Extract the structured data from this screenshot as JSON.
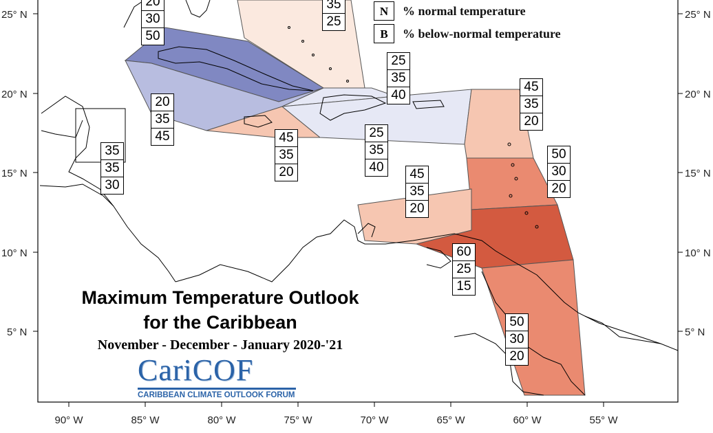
{
  "title_line1": "Maximum Temperature Outlook",
  "title_line2": "for the Caribbean",
  "subtitle": "November - December - January 2020-'21",
  "logo": {
    "main": "CariCOF",
    "sub": "CARIBBEAN CLIMATE OUTLOOK FORUM"
  },
  "legend": [
    {
      "key": "N",
      "text": "% normal temperature"
    },
    {
      "key": "B",
      "text": "% below-normal temperature"
    }
  ],
  "axes": {
    "lat_labels": [
      "25° N",
      "20° N",
      "15° N",
      "10° N",
      "5° N"
    ],
    "lon_labels": [
      "90° W",
      "85° W",
      "80° W",
      "75° W",
      "70° W",
      "65° W",
      "60° W",
      "55° W"
    ]
  },
  "colors": {
    "below_strong": "#8088c2",
    "below_medium": "#b8bde0",
    "below_light": "#e6e8f5",
    "above_faint": "#fbe9df",
    "above_light": "#f6c6b1",
    "above_medium": "#ea8a70",
    "above_strong": "#d35a40"
  },
  "zones": [
    {
      "name": "florida-bahamas",
      "probs": [
        "35",
        "25"
      ]
    },
    {
      "name": "cuba",
      "probs": [
        "20",
        "30",
        "50"
      ]
    },
    {
      "name": "cayman-western-cuba",
      "probs": [
        "20",
        "35",
        "45"
      ]
    },
    {
      "name": "belize",
      "probs": [
        "35",
        "35",
        "30"
      ]
    },
    {
      "name": "jamaica",
      "probs": [
        "45",
        "35",
        "20"
      ]
    },
    {
      "name": "turks-caicos",
      "probs": [
        "25",
        "35",
        "40"
      ]
    },
    {
      "name": "hispaniola-puerto-rico",
      "probs": [
        "25",
        "35",
        "40"
      ]
    },
    {
      "name": "northern-leeward",
      "probs": [
        "45",
        "35",
        "20"
      ]
    },
    {
      "name": "windward-islands",
      "probs": [
        "50",
        "30",
        "20"
      ]
    },
    {
      "name": "abc-islands",
      "probs": [
        "45",
        "35",
        "20"
      ]
    },
    {
      "name": "trinidad-tobago",
      "probs": [
        "60",
        "25",
        "15"
      ]
    },
    {
      "name": "guianas",
      "probs": [
        "50",
        "30",
        "20"
      ]
    }
  ]
}
